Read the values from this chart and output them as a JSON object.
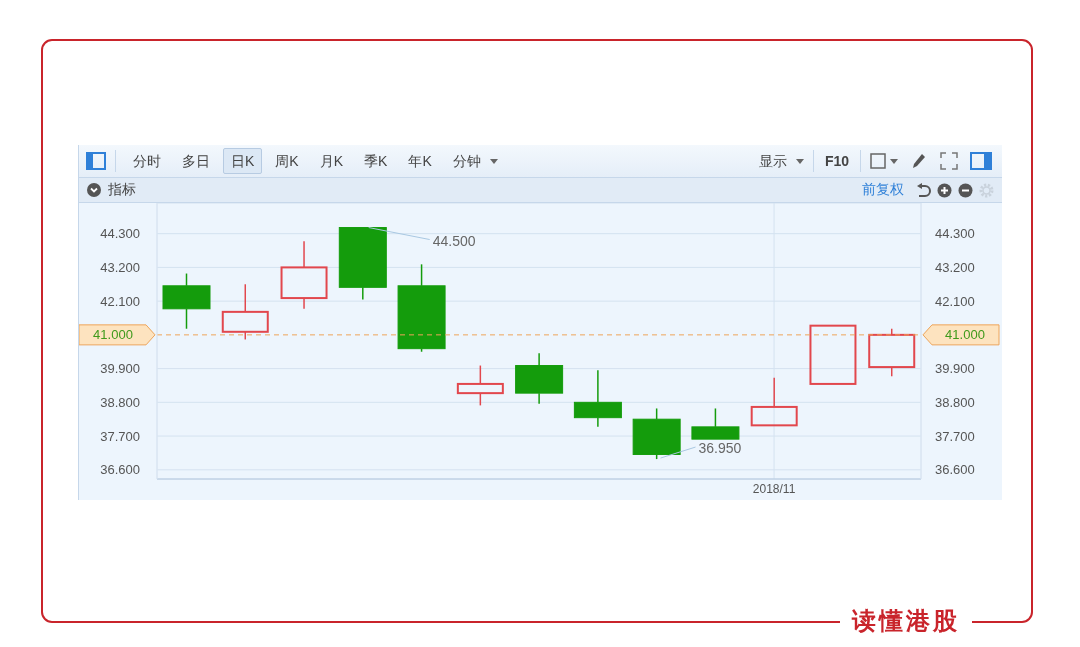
{
  "chart_data": {
    "type": "candlestick",
    "categories": [
      null,
      null,
      null,
      null,
      null,
      null,
      null,
      null,
      null,
      null,
      "2018/11",
      null,
      null
    ],
    "ohlc": [
      [
        42.6,
        43.0,
        41.2,
        41.85
      ],
      [
        41.1,
        42.65,
        40.85,
        41.75
      ],
      [
        42.2,
        44.05,
        41.85,
        43.2
      ],
      [
        44.5,
        44.5,
        42.15,
        42.55
      ],
      [
        42.6,
        43.3,
        40.45,
        40.55
      ],
      [
        39.1,
        40.0,
        38.7,
        39.4
      ],
      [
        40.0,
        40.4,
        38.75,
        39.1
      ],
      [
        38.8,
        39.85,
        38.0,
        38.3
      ],
      [
        38.25,
        38.6,
        36.95,
        37.1
      ],
      [
        38.0,
        38.6,
        37.6,
        37.6
      ],
      [
        38.05,
        39.6,
        38.05,
        38.65
      ],
      [
        39.4,
        41.3,
        39.4,
        41.3
      ],
      [
        39.95,
        41.2,
        39.65,
        41.0
      ]
    ],
    "colors": [
      "#149c0c",
      "#e2474d",
      "#e2474d",
      "#149c0c",
      "#149c0c",
      "#e2474d",
      "#149c0c",
      "#149c0c",
      "#149c0c",
      "#149c0c",
      "#e2474d",
      "#e2474d",
      "#e2474d"
    ],
    "ylim": [
      36.3,
      45.3
    ],
    "yticks": [
      {
        "value": 36.6,
        "label": "36.600"
      },
      {
        "value": 37.7,
        "label": "37.700"
      },
      {
        "value": 38.8,
        "label": "38.800"
      },
      {
        "value": 39.9,
        "label": "39.900"
      },
      {
        "value": 42.1,
        "label": "42.100"
      },
      {
        "value": 43.2,
        "label": "43.200"
      },
      {
        "value": 44.3,
        "label": "44.300"
      }
    ],
    "y2lim": [
      36.3,
      45.3
    ],
    "y2ticks": [
      {
        "value": 36.6,
        "label": "36.600"
      },
      {
        "value": 37.7,
        "label": "37.700"
      },
      {
        "value": 38.8,
        "label": "38.800"
      },
      {
        "value": 39.9,
        "label": "39.900"
      },
      {
        "value": 42.1,
        "label": "42.100"
      },
      {
        "value": 43.2,
        "label": "43.200"
      },
      {
        "value": 44.3,
        "label": "44.300"
      }
    ],
    "grid": true,
    "ref_lines": [
      {
        "axis": "y",
        "value": 41.0,
        "label": "41.000",
        "color": "#eea55a",
        "line_style": "dashed"
      }
    ],
    "annotations": [
      "分时",
      "多日",
      "日K",
      "周K",
      "月K",
      "季K",
      "年K",
      "分钟",
      "显示",
      "F10",
      "指标",
      "前复权",
      "读懂港股",
      "44.500",
      "36.950"
    ]
  }
}
